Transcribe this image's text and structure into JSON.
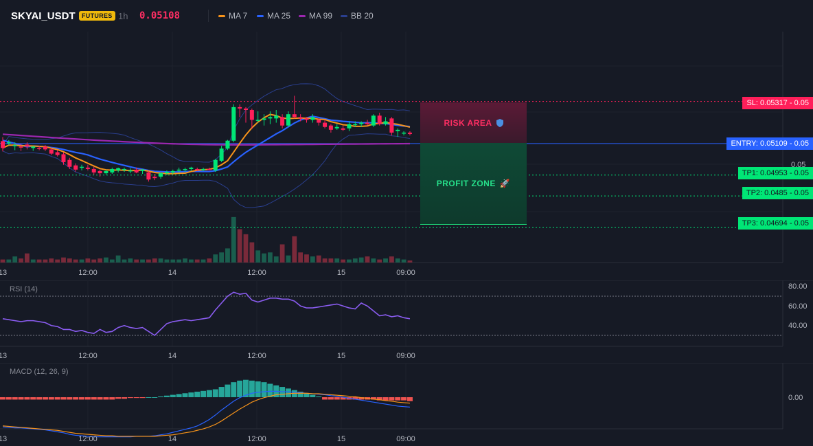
{
  "header": {
    "symbol": "SKYAI_USDT",
    "badge": "FUTURES",
    "timeframe": "1h",
    "last_price": "0.05108",
    "indicators": [
      {
        "name": "MA 7",
        "color": "#f7931a"
      },
      {
        "name": "MA 25",
        "color": "#2962ff"
      },
      {
        "name": "MA 99",
        "color": "#9c27b0"
      },
      {
        "name": "BB 20",
        "color": "#2a3f8f"
      }
    ]
  },
  "levels": {
    "sl": {
      "label": "SL: 0.05317",
      "price": "0.05",
      "value": 0.05317,
      "color": "#ff1f5a"
    },
    "entry": {
      "label": "ENTRY: 0.05109",
      "price": "0.05",
      "value": 0.05109,
      "color": "#2962ff"
    },
    "tp1": {
      "label": "TP1: 0.04953",
      "price": "0.05",
      "value": 0.04953,
      "color": "#00e676"
    },
    "tp2": {
      "label": "TP2: 0.0485",
      "price": "0.05",
      "value": 0.0485,
      "color": "#00e676"
    },
    "tp3": {
      "label": "TP3: 0.04694",
      "price": "0.05",
      "value": 0.04694,
      "color": "#00e676"
    }
  },
  "zones": {
    "risk": {
      "label": "RISK AREA",
      "icon": "shield-icon"
    },
    "profit": {
      "label": "PROFIT ZONE",
      "icon": "rocket-icon"
    }
  },
  "price_axis": {
    "tick": "0.05"
  },
  "time_axis": [
    "13",
    "12:00",
    "14",
    "12:00",
    "15",
    "09:00"
  ],
  "rsi": {
    "title": "RSI (14)",
    "ticks": [
      "80.00",
      "60.00",
      "40.00"
    ],
    "upper": 70,
    "lower": 30
  },
  "macd": {
    "title": "MACD (12, 26, 9)",
    "tick": "0.00"
  },
  "chart_data": {
    "type": "candlestick",
    "candles": [
      {
        "o": 0.05121,
        "h": 0.05141,
        "l": 0.0507,
        "c": 0.05087
      },
      {
        "o": 0.05111,
        "h": 0.05126,
        "l": 0.051,
        "c": 0.05115
      },
      {
        "o": 0.05101,
        "h": 0.05115,
        "l": 0.05076,
        "c": 0.05101
      },
      {
        "o": 0.05094,
        "h": 0.05108,
        "l": 0.05072,
        "c": 0.0509
      },
      {
        "o": 0.05104,
        "h": 0.05115,
        "l": 0.0508,
        "c": 0.05094
      },
      {
        "o": 0.05087,
        "h": 0.05097,
        "l": 0.05073,
        "c": 0.05094
      },
      {
        "o": 0.05087,
        "h": 0.05097,
        "l": 0.05076,
        "c": 0.05083
      },
      {
        "o": 0.05094,
        "h": 0.05101,
        "l": 0.05072,
        "c": 0.0508
      },
      {
        "o": 0.0508,
        "h": 0.05087,
        "l": 0.05052,
        "c": 0.05059
      },
      {
        "o": 0.05066,
        "h": 0.05076,
        "l": 0.05045,
        "c": 0.05052
      },
      {
        "o": 0.05056,
        "h": 0.05066,
        "l": 0.05004,
        "c": 0.05017
      },
      {
        "o": 0.05028,
        "h": 0.05038,
        "l": 0.04983,
        "c": 0.04994
      },
      {
        "o": 0.05001,
        "h": 0.05011,
        "l": 0.0497,
        "c": 0.0498
      },
      {
        "o": 0.0499,
        "h": 0.05004,
        "l": 0.04976,
        "c": 0.04994
      },
      {
        "o": 0.0499,
        "h": 0.05004,
        "l": 0.04976,
        "c": 0.04983
      },
      {
        "o": 0.04983,
        "h": 0.04994,
        "l": 0.04955,
        "c": 0.04966
      },
      {
        "o": 0.04973,
        "h": 0.0498,
        "l": 0.04945,
        "c": 0.04962
      },
      {
        "o": 0.04962,
        "h": 0.0498,
        "l": 0.04955,
        "c": 0.04973
      },
      {
        "o": 0.04966,
        "h": 0.0499,
        "l": 0.04959,
        "c": 0.04983
      },
      {
        "o": 0.04976,
        "h": 0.0499,
        "l": 0.04966,
        "c": 0.04987
      },
      {
        "o": 0.0498,
        "h": 0.0499,
        "l": 0.04969,
        "c": 0.04983
      },
      {
        "o": 0.04976,
        "h": 0.04987,
        "l": 0.04962,
        "c": 0.04976
      },
      {
        "o": 0.0498,
        "h": 0.0499,
        "l": 0.04962,
        "c": 0.04966
      },
      {
        "o": 0.04973,
        "h": 0.04983,
        "l": 0.04959,
        "c": 0.0498
      },
      {
        "o": 0.04966,
        "h": 0.04973,
        "l": 0.04921,
        "c": 0.04931
      },
      {
        "o": 0.04945,
        "h": 0.04959,
        "l": 0.04928,
        "c": 0.04938
      },
      {
        "o": 0.04945,
        "h": 0.04966,
        "l": 0.04935,
        "c": 0.04962
      },
      {
        "o": 0.04962,
        "h": 0.04976,
        "l": 0.04952,
        "c": 0.04969
      },
      {
        "o": 0.04966,
        "h": 0.0498,
        "l": 0.04959,
        "c": 0.04973
      },
      {
        "o": 0.04976,
        "h": 0.0499,
        "l": 0.04966,
        "c": 0.0498
      },
      {
        "o": 0.0498,
        "h": 0.0499,
        "l": 0.04969,
        "c": 0.04983
      },
      {
        "o": 0.04983,
        "h": 0.04994,
        "l": 0.04973,
        "c": 0.0499
      },
      {
        "o": 0.04983,
        "h": 0.0499,
        "l": 0.04973,
        "c": 0.0498
      },
      {
        "o": 0.0498,
        "h": 0.0499,
        "l": 0.04973,
        "c": 0.04983
      },
      {
        "o": 0.04983,
        "h": 0.0499,
        "l": 0.04976,
        "c": 0.0498
      },
      {
        "o": 0.04976,
        "h": 0.05034,
        "l": 0.04969,
        "c": 0.05028
      },
      {
        "o": 0.05024,
        "h": 0.05098,
        "l": 0.05017,
        "c": 0.05084
      },
      {
        "o": 0.05084,
        "h": 0.05127,
        "l": 0.05077,
        "c": 0.05123
      },
      {
        "o": 0.05123,
        "h": 0.05303,
        "l": 0.05115,
        "c": 0.05289
      },
      {
        "o": 0.05289,
        "h": 0.05303,
        "l": 0.0524,
        "c": 0.05282
      },
      {
        "o": 0.05282,
        "h": 0.05289,
        "l": 0.05212,
        "c": 0.05275
      },
      {
        "o": 0.05275,
        "h": 0.05282,
        "l": 0.05182,
        "c": 0.05226
      },
      {
        "o": 0.05226,
        "h": 0.05268,
        "l": 0.05212,
        "c": 0.05226
      },
      {
        "o": 0.05226,
        "h": 0.05254,
        "l": 0.05198,
        "c": 0.05233
      },
      {
        "o": 0.05233,
        "h": 0.05268,
        "l": 0.05205,
        "c": 0.0524
      },
      {
        "o": 0.05233,
        "h": 0.05275,
        "l": 0.05212,
        "c": 0.05247
      },
      {
        "o": 0.0524,
        "h": 0.05254,
        "l": 0.05184,
        "c": 0.05198
      },
      {
        "o": 0.05198,
        "h": 0.05268,
        "l": 0.05191,
        "c": 0.05254
      },
      {
        "o": 0.05254,
        "h": 0.05345,
        "l": 0.05233,
        "c": 0.0524
      },
      {
        "o": 0.0524,
        "h": 0.05254,
        "l": 0.05219,
        "c": 0.05233
      },
      {
        "o": 0.05233,
        "h": 0.0524,
        "l": 0.05212,
        "c": 0.05226
      },
      {
        "o": 0.05226,
        "h": 0.05254,
        "l": 0.05212,
        "c": 0.0524
      },
      {
        "o": 0.05226,
        "h": 0.05233,
        "l": 0.05198,
        "c": 0.05212
      },
      {
        "o": 0.05212,
        "h": 0.05226,
        "l": 0.05184,
        "c": 0.05191
      },
      {
        "o": 0.05198,
        "h": 0.05205,
        "l": 0.05163,
        "c": 0.05177
      },
      {
        "o": 0.05184,
        "h": 0.05205,
        "l": 0.05177,
        "c": 0.05191
      },
      {
        "o": 0.05184,
        "h": 0.05198,
        "l": 0.0517,
        "c": 0.05177
      },
      {
        "o": 0.05184,
        "h": 0.05219,
        "l": 0.0517,
        "c": 0.05205
      },
      {
        "o": 0.05205,
        "h": 0.05219,
        "l": 0.05191,
        "c": 0.05205
      },
      {
        "o": 0.05205,
        "h": 0.05219,
        "l": 0.05191,
        "c": 0.05212
      },
      {
        "o": 0.05212,
        "h": 0.05226,
        "l": 0.05198,
        "c": 0.05205
      },
      {
        "o": 0.05198,
        "h": 0.05254,
        "l": 0.05191,
        "c": 0.05247
      },
      {
        "o": 0.05247,
        "h": 0.05261,
        "l": 0.05198,
        "c": 0.05205
      },
      {
        "o": 0.05205,
        "h": 0.0524,
        "l": 0.05198,
        "c": 0.05219
      },
      {
        "o": 0.05233,
        "h": 0.0524,
        "l": 0.05149,
        "c": 0.05163
      },
      {
        "o": 0.0517,
        "h": 0.05184,
        "l": 0.05142,
        "c": 0.05177
      },
      {
        "o": 0.05163,
        "h": 0.0517,
        "l": 0.05149,
        "c": 0.05163
      },
      {
        "o": 0.05163,
        "h": 0.0517,
        "l": 0.05149,
        "c": 0.05156
      }
    ]
  }
}
